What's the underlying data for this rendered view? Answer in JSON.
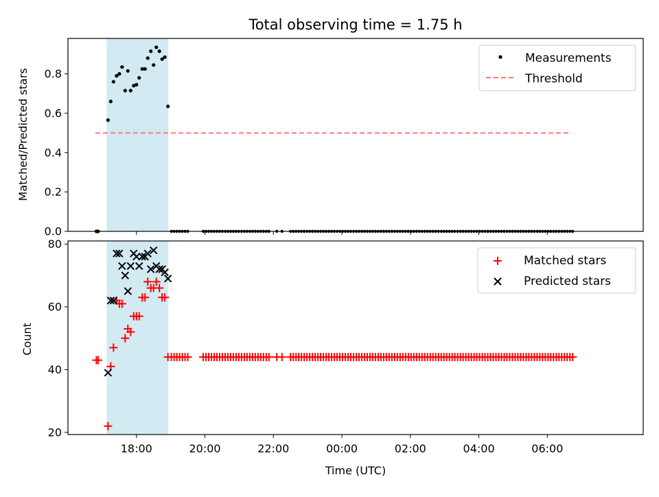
{
  "chart_data": [
    {
      "type": "scatter",
      "title": "Total observing time = 1.75 h",
      "xlabel": "",
      "ylabel": "Matched/Predicted stars",
      "ylim": [
        0,
        0.98
      ],
      "yticks": [
        0.0,
        0.2,
        0.4,
        0.6,
        0.8
      ],
      "ytick_labels": [
        "0.0",
        "0.2",
        "0.4",
        "0.6",
        "0.8"
      ],
      "xlim_hours": [
        16.0,
        32.8
      ],
      "shaded_span_hours": [
        17.13,
        18.93
      ],
      "shaded_color": "#add8e6",
      "legend": {
        "placement": "upper right",
        "entries": [
          "Measurements",
          "Threshold"
        ]
      },
      "threshold": {
        "name": "Threshold",
        "y": 0.5,
        "x_range_hours": [
          16.8,
          30.62
        ],
        "color": "#ff7777",
        "style": "dashed"
      },
      "series": [
        {
          "name": "Measurements",
          "color": "#000000",
          "points": [
            [
              16.83,
              0
            ],
            [
              16.88,
              0
            ],
            [
              17.17,
              0.565
            ],
            [
              17.25,
              0.66
            ],
            [
              17.33,
              0.76
            ],
            [
              17.42,
              0.79
            ],
            [
              17.5,
              0.8
            ],
            [
              17.58,
              0.835
            ],
            [
              17.67,
              0.715
            ],
            [
              17.75,
              0.815
            ],
            [
              17.83,
              0.715
            ],
            [
              17.92,
              0.74
            ],
            [
              18.0,
              0.745
            ],
            [
              18.08,
              0.78
            ],
            [
              18.17,
              0.825
            ],
            [
              18.25,
              0.825
            ],
            [
              18.33,
              0.88
            ],
            [
              18.42,
              0.915
            ],
            [
              18.5,
              0.845
            ],
            [
              18.58,
              0.935
            ],
            [
              18.67,
              0.915
            ],
            [
              18.75,
              0.875
            ],
            [
              18.83,
              0.885
            ],
            [
              18.92,
              0.635
            ]
          ],
          "zeros_hours_segments": [
            [
              19.02,
              19.55,
              0.08
            ],
            [
              19.95,
              21.9,
              0.08
            ],
            [
              22.1,
              22.1,
              0.08
            ],
            [
              22.25,
              22.3,
              0.08
            ],
            [
              22.5,
              30.75,
              0.08
            ]
          ]
        }
      ]
    },
    {
      "type": "scatter",
      "title": "",
      "xlabel": "Time (UTC)",
      "ylabel": "Count",
      "ylim": [
        19.3,
        81
      ],
      "yticks": [
        20,
        40,
        60,
        80
      ],
      "ytick_labels": [
        "20",
        "40",
        "60",
        "80"
      ],
      "xticks_hours": [
        18,
        20,
        22,
        24,
        26,
        28,
        30
      ],
      "xtick_labels": [
        "18:00",
        "20:00",
        "22:00",
        "00:00",
        "02:00",
        "04:00",
        "06:00"
      ],
      "legend": {
        "placement": "upper right",
        "entries": [
          "Matched stars",
          "Predicted stars"
        ]
      },
      "series": [
        {
          "name": "Matched stars",
          "color": "#ff0000",
          "marker": "plus",
          "points": [
            [
              16.83,
              43
            ],
            [
              16.88,
              43
            ],
            [
              17.17,
              22
            ],
            [
              17.25,
              41
            ],
            [
              17.33,
              47
            ],
            [
              17.42,
              62
            ],
            [
              17.5,
              61
            ],
            [
              17.58,
              61
            ],
            [
              17.67,
              50
            ],
            [
              17.75,
              53
            ],
            [
              17.83,
              52
            ],
            [
              17.92,
              57
            ],
            [
              18.0,
              57
            ],
            [
              18.08,
              57
            ],
            [
              18.17,
              63
            ],
            [
              18.25,
              63
            ],
            [
              18.33,
              68
            ],
            [
              18.42,
              66
            ],
            [
              18.5,
              66
            ],
            [
              18.58,
              68
            ],
            [
              18.67,
              66
            ],
            [
              18.75,
              63
            ],
            [
              18.83,
              63
            ],
            [
              18.92,
              44
            ]
          ],
          "tail": {
            "y": 44,
            "segments_hours": [
              [
                19.02,
                19.55,
                0.08
              ],
              [
                19.95,
                21.9,
                0.08
              ],
              [
                22.1,
                22.1,
                0.08
              ],
              [
                22.25,
                22.3,
                0.08
              ],
              [
                22.5,
                30.75,
                0.08
              ]
            ]
          }
        },
        {
          "name": "Predicted stars",
          "color": "#000000",
          "marker": "x",
          "points": [
            [
              17.17,
              39
            ],
            [
              17.25,
              62
            ],
            [
              17.33,
              62
            ],
            [
              17.42,
              77
            ],
            [
              17.5,
              77
            ],
            [
              17.58,
              73
            ],
            [
              17.67,
              70
            ],
            [
              17.75,
              65
            ],
            [
              17.83,
              73
            ],
            [
              17.92,
              77
            ],
            [
              18.0,
              76
            ],
            [
              18.08,
              73
            ],
            [
              18.17,
              76
            ],
            [
              18.25,
              76
            ],
            [
              18.33,
              77
            ],
            [
              18.42,
              72
            ],
            [
              18.5,
              78
            ],
            [
              18.58,
              73
            ],
            [
              18.67,
              72
            ],
            [
              18.75,
              72
            ],
            [
              18.83,
              71
            ],
            [
              18.92,
              69
            ]
          ]
        }
      ]
    }
  ]
}
